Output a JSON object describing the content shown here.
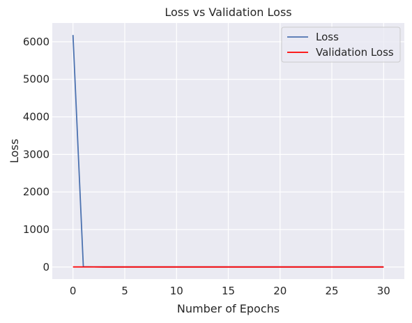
{
  "chart_data": {
    "type": "line",
    "title": "Loss vs Validation Loss",
    "xlabel": "Number of Epochs",
    "ylabel": "Loss",
    "xlim": [
      -2,
      32
    ],
    "ylim": [
      -320,
      6500
    ],
    "xticks": [
      0,
      5,
      10,
      15,
      20,
      25,
      30
    ],
    "yticks": [
      0,
      1000,
      2000,
      3000,
      4000,
      5000,
      6000
    ],
    "grid": true,
    "legend_position": "top-right",
    "x": [
      0,
      1,
      2,
      3,
      4,
      5,
      6,
      7,
      8,
      9,
      10,
      11,
      12,
      13,
      14,
      15,
      16,
      17,
      18,
      19,
      20,
      21,
      22,
      23,
      24,
      25,
      26,
      27,
      28,
      29,
      30
    ],
    "series": [
      {
        "name": "Loss",
        "color": "#4c72b0",
        "values": [
          6180,
          5,
          3,
          2,
          2,
          2,
          2,
          2,
          2,
          2,
          2,
          2,
          2,
          2,
          2,
          2,
          2,
          2,
          2,
          2,
          2,
          2,
          2,
          2,
          2,
          2,
          2,
          2,
          2,
          2,
          2
        ]
      },
      {
        "name": "Validation Loss",
        "color": "#ff0000",
        "values": [
          3,
          3,
          3,
          2,
          2,
          2,
          2,
          2,
          2,
          2,
          2,
          2,
          2,
          2,
          2,
          2,
          2,
          2,
          2,
          2,
          2,
          2,
          2,
          2,
          2,
          2,
          2,
          2,
          2,
          2,
          2
        ]
      }
    ]
  }
}
